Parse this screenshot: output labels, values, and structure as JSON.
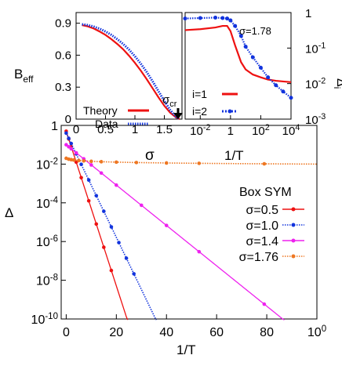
{
  "colors": {
    "red": "#ee1111",
    "blue": "#1133dd",
    "magenta": "#ee22ee",
    "orange": "#ee7722"
  },
  "chart_data": [
    {
      "type": "line",
      "xlabel": "σ",
      "ylabel": "B",
      "ylabel_sub": "eff",
      "xlim": [
        0,
        1.8
      ],
      "ylim": [
        0,
        1.0
      ],
      "x_ticks": [
        "0",
        "0.5",
        "1",
        "1.5"
      ],
      "x_tick_values": [
        0,
        0.5,
        1,
        1.5
      ],
      "y_ticks": [
        "0.9",
        "0.6",
        "0.3",
        "0"
      ],
      "y_tick_values": [
        0.9,
        0.6,
        0.3,
        0
      ],
      "annotation": {
        "text": "σ",
        "sub": "cr",
        "x": 1.76
      },
      "legend": [
        "Theory",
        "Data"
      ],
      "series": [
        {
          "name": "Theory",
          "style": "solid",
          "color": "#ee1111",
          "x": [
            0.1,
            0.2,
            0.3,
            0.4,
            0.5,
            0.6,
            0.7,
            0.8,
            0.9,
            1.0,
            1.1,
            1.2,
            1.3,
            1.4,
            1.5,
            1.6,
            1.7,
            1.76
          ],
          "y": [
            0.882,
            0.87,
            0.85,
            0.822,
            0.79,
            0.75,
            0.705,
            0.655,
            0.595,
            0.528,
            0.455,
            0.375,
            0.29,
            0.205,
            0.125,
            0.06,
            0.015,
            0.0
          ]
        },
        {
          "name": "Data",
          "style": "dotted",
          "color": "#1133dd",
          "x": [
            0.1,
            0.2,
            0.3,
            0.4,
            0.5,
            0.6,
            0.7,
            0.8,
            0.9,
            1.0,
            1.1,
            1.2,
            1.3,
            1.4,
            1.5,
            1.6,
            1.7,
            1.76
          ],
          "y": [
            0.89,
            0.882,
            0.868,
            0.848,
            0.822,
            0.79,
            0.75,
            0.705,
            0.652,
            0.59,
            0.52,
            0.442,
            0.355,
            0.262,
            0.17,
            0.085,
            0.02,
            0.0
          ]
        }
      ]
    },
    {
      "type": "line",
      "xlabel": "1/T",
      "ylabel": "Δ",
      "ylabel_sub": "i",
      "x_scale": "log",
      "y_scale": "log",
      "xlim": [
        0.001,
        10000
      ],
      "ylim": [
        0.001,
        1
      ],
      "x_ticks": [
        "10-2",
        "1",
        "102",
        "104"
      ],
      "y_ticks": [
        "1",
        "10-1",
        "10-2",
        "10-3"
      ],
      "annotation": "σ=1.78",
      "legend": [
        "i=1",
        "i=2"
      ],
      "series": [
        {
          "name": "i=1",
          "style": "solid",
          "color": "#ee1111",
          "x": [
            0.001,
            0.01,
            0.1,
            0.3,
            0.6,
            1,
            2,
            5,
            10,
            30,
            100,
            300,
            1000,
            3000,
            10000
          ],
          "y": [
            0.32,
            0.34,
            0.38,
            0.42,
            0.42,
            0.3,
            0.12,
            0.04,
            0.025,
            0.018,
            0.015,
            0.013,
            0.012,
            0.0115,
            0.011
          ]
        },
        {
          "name": "i=2",
          "style": "dotted",
          "color": "#1133dd",
          "x": [
            0.001,
            0.01,
            0.1,
            0.3,
            0.6,
            1,
            2,
            5,
            10,
            30,
            100,
            300,
            1000,
            3000,
            10000
          ],
          "y": [
            0.68,
            0.7,
            0.72,
            0.7,
            0.68,
            0.6,
            0.42,
            0.22,
            0.11,
            0.055,
            0.028,
            0.015,
            0.009,
            0.006,
            0.004
          ]
        }
      ]
    },
    {
      "type": "line",
      "xlabel": "1/T",
      "ylabel": "Δ",
      "y_scale": "log",
      "xlim": [
        -2,
        100
      ],
      "ylim": [
        1e-10,
        1
      ],
      "x_ticks": [
        "0",
        "20",
        "40",
        "60",
        "80",
        "100"
      ],
      "x_tick_values": [
        0,
        20,
        40,
        60,
        80,
        100
      ],
      "y_ticks": [
        "1",
        "10-2",
        "10-4",
        "10-6",
        "10-8",
        "10-10"
      ],
      "legend_title": "Box SYM",
      "legend": [
        "σ=0.5",
        "σ=1.0",
        "σ=1.4",
        "σ=1.76"
      ],
      "series": [
        {
          "name": "σ=0.5",
          "style": "solid",
          "color": "#ee1111",
          "rate": 0.92,
          "y0": 0.5,
          "markers_x": [
            0,
            1,
            2,
            4,
            6,
            9,
            12,
            15,
            18
          ]
        },
        {
          "name": "σ=1.0",
          "style": "dotted",
          "color": "#1133dd",
          "rate": 0.62,
          "y0": 0.4,
          "markers_x": [
            0,
            1,
            2,
            4,
            6,
            9,
            12,
            15,
            18,
            21,
            24,
            27
          ]
        },
        {
          "name": "σ=1.4",
          "style": "solid",
          "color": "#ee22ee",
          "rate": 0.24,
          "y0": 0.1,
          "markers_x": [
            0,
            1,
            2,
            4,
            7,
            10,
            14,
            20,
            30,
            40,
            53,
            79
          ]
        },
        {
          "name": "σ=1.76",
          "style": "dotted",
          "color": "#ee7722",
          "rate": 0,
          "y0": 0.02,
          "markers_x": [
            0,
            1,
            2,
            3,
            5,
            7,
            10,
            14,
            20,
            28,
            40,
            53,
            79
          ]
        }
      ]
    }
  ]
}
